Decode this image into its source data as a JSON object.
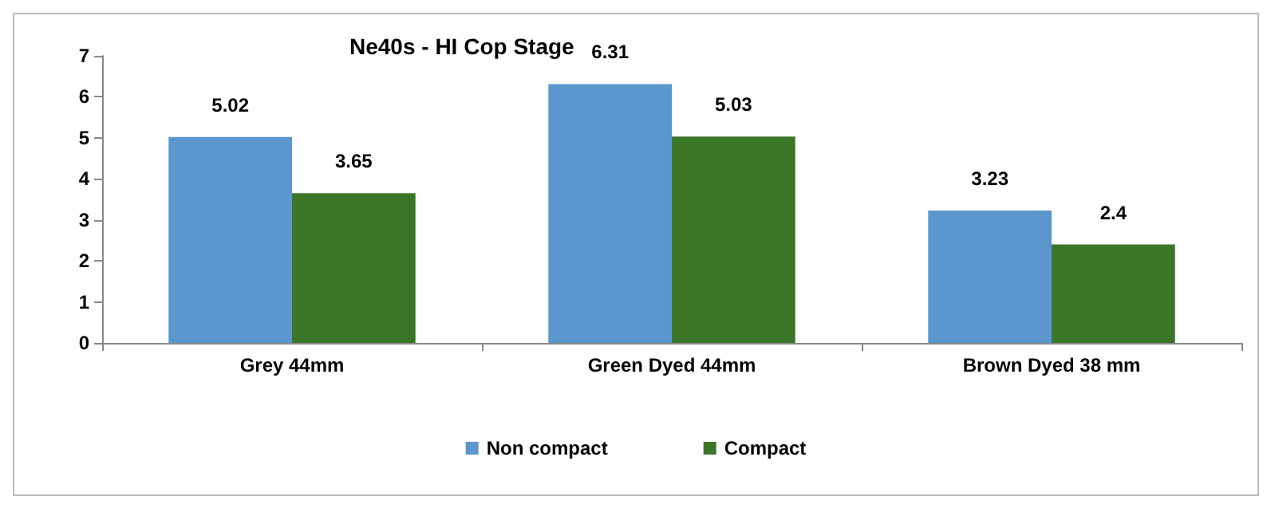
{
  "chart_data": {
    "type": "bar",
    "title": "Ne40s - HI Cop Stage",
    "categories": [
      "Grey 44mm",
      "Green Dyed 44mm",
      "Brown Dyed 38 mm"
    ],
    "series": [
      {
        "name": "Non compact",
        "color": "#5b96cd",
        "values": [
          5.02,
          6.31,
          3.23
        ]
      },
      {
        "name": "Compact",
        "color": "#3b7628",
        "values": [
          3.65,
          5.03,
          2.4
        ]
      }
    ],
    "ylim": [
      0,
      7
    ],
    "yticks": [
      0,
      1,
      2,
      3,
      4,
      5,
      6,
      7
    ],
    "grid": false,
    "legend": "bottom",
    "data_labels": true
  }
}
